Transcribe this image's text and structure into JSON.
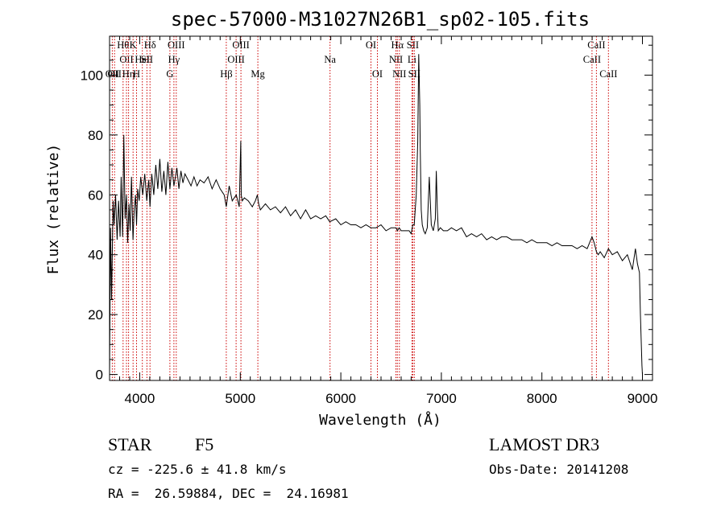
{
  "chart_data": {
    "type": "line",
    "title": "spec-57000-M31027N26B1_sp02-105.fits",
    "xlabel": "Wavelength (Å)",
    "ylabel": "Flux (relative)",
    "xlim": [
      3700,
      9100
    ],
    "ylim": [
      -2,
      113
    ],
    "x_ticks": [
      4000,
      5000,
      6000,
      7000,
      8000,
      9000
    ],
    "y_ticks": [
      0,
      20,
      40,
      60,
      80,
      100
    ],
    "grid": false,
    "line_color": "#000000",
    "marker_color": "#cc0000",
    "series": [
      {
        "x": [
          3700,
          3710,
          3720,
          3735,
          3745,
          3760,
          3775,
          3790,
          3805,
          3815,
          3830,
          3842,
          3855,
          3868,
          3880,
          3893,
          3905,
          3918,
          3933,
          3945,
          3958,
          3968,
          3980,
          3995,
          4010,
          4030,
          4050,
          4070,
          4090,
          4102,
          4120,
          4140,
          4160,
          4180,
          4200,
          4220,
          4240,
          4260,
          4280,
          4300,
          4320,
          4340,
          4355,
          4370,
          4390,
          4410,
          4430,
          4450,
          4480,
          4510,
          4540,
          4570,
          4600,
          4640,
          4680,
          4720,
          4760,
          4800,
          4840,
          4861,
          4890,
          4920,
          4960,
          4990,
          5005,
          5010,
          5020,
          5040,
          5080,
          5120,
          5150,
          5170,
          5183,
          5200,
          5250,
          5300,
          5350,
          5400,
          5450,
          5500,
          5550,
          5600,
          5650,
          5700,
          5750,
          5800,
          5850,
          5890,
          5950,
          6000,
          6050,
          6100,
          6150,
          6200,
          6250,
          6300,
          6350,
          6400,
          6450,
          6500,
          6550,
          6563,
          6580,
          6600,
          6640,
          6680,
          6700,
          6716,
          6730,
          6750,
          6765,
          6775,
          6785,
          6790,
          6800,
          6810,
          6825,
          6840,
          6860,
          6880,
          6900,
          6920,
          6940,
          6950,
          6960,
          6970,
          6990,
          7020,
          7060,
          7100,
          7150,
          7200,
          7250,
          7300,
          7350,
          7400,
          7450,
          7500,
          7550,
          7600,
          7650,
          7700,
          7750,
          7800,
          7850,
          7900,
          7950,
          8000,
          8050,
          8100,
          8150,
          8200,
          8250,
          8300,
          8350,
          8400,
          8450,
          8498,
          8520,
          8542,
          8560,
          8580,
          8620,
          8662,
          8700,
          8750,
          8800,
          8850,
          8900,
          8930,
          8950,
          8970,
          8980,
          8995,
          9000
        ],
        "y": [
          0,
          49,
          25,
          58,
          50,
          60,
          45,
          58,
          46,
          66,
          46,
          80,
          52,
          60,
          44,
          57,
          48,
          66,
          45,
          55,
          60,
          50,
          62,
          58,
          66,
          60,
          67,
          58,
          65,
          56,
          67,
          60,
          70,
          62,
          72,
          61,
          68,
          60,
          71,
          62,
          69,
          63,
          66,
          69,
          62,
          68,
          64,
          67,
          65,
          63,
          66,
          63,
          65,
          64,
          66,
          62,
          65,
          62,
          60,
          56,
          63,
          58,
          60,
          56,
          78,
          60,
          58,
          59,
          58,
          56,
          58,
          60,
          57,
          55,
          57,
          55,
          56,
          54,
          56,
          53,
          55,
          52,
          55,
          52,
          53,
          52,
          53,
          51,
          52,
          50,
          51,
          50,
          50,
          49,
          50,
          49,
          49,
          50,
          48,
          49,
          49,
          48,
          49,
          48,
          48,
          48,
          47,
          50,
          50,
          60,
          78,
          107,
          90,
          75,
          55,
          50,
          48,
          47,
          49,
          66,
          50,
          48,
          52,
          68,
          55,
          48,
          49,
          48,
          48,
          49,
          48,
          49,
          46,
          47,
          46,
          47,
          45,
          46,
          45,
          46,
          46,
          45,
          45,
          45,
          44,
          45,
          44,
          44,
          44,
          43,
          44,
          43,
          43,
          43,
          42,
          43,
          42,
          46,
          44,
          41,
          40,
          41,
          39,
          42,
          40,
          41,
          38,
          40,
          35,
          42,
          37,
          34,
          20,
          3,
          0
        ]
      }
    ],
    "line_markers": [
      {
        "x": 3727,
        "label": "OII",
        "row": 2
      },
      {
        "x": 3750,
        "label": "OII",
        "row": 2
      },
      {
        "x": 3835,
        "label": "Hθ",
        "row": 0
      },
      {
        "x": 3868,
        "label": "OII",
        "row": 1
      },
      {
        "x": 3889,
        "label": "Hη",
        "row": 2
      },
      {
        "x": 3934,
        "label": "K",
        "row": 0
      },
      {
        "x": 3968,
        "label": "H",
        "row": 2
      },
      {
        "x": 4026,
        "label": "HeI",
        "row": 1
      },
      {
        "x": 4072,
        "label": "SII",
        "row": 1
      },
      {
        "x": 4102,
        "label": "Hδ",
        "row": 0
      },
      {
        "x": 4300,
        "label": "G",
        "row": 2
      },
      {
        "x": 4340,
        "label": "Hγ",
        "row": 1
      },
      {
        "x": 4363,
        "label": "OIII",
        "row": 0
      },
      {
        "x": 4861,
        "label": "Hβ",
        "row": 2
      },
      {
        "x": 4959,
        "label": "OIII",
        "row": 1
      },
      {
        "x": 5007,
        "label": "OIII",
        "row": 0
      },
      {
        "x": 5175,
        "label": "Mg",
        "row": 2
      },
      {
        "x": 5893,
        "label": "Na",
        "row": 1
      },
      {
        "x": 6300,
        "label": "OI",
        "row": 0
      },
      {
        "x": 6364,
        "label": "OI",
        "row": 2
      },
      {
        "x": 6548,
        "label": "NII",
        "row": 1
      },
      {
        "x": 6563,
        "label": "Hα",
        "row": 0
      },
      {
        "x": 6583,
        "label": "NII",
        "row": 2
      },
      {
        "x": 6708,
        "label": "Li",
        "row": 1
      },
      {
        "x": 6716,
        "label": "SII",
        "row": 0
      },
      {
        "x": 6731,
        "label": "SII",
        "row": 2
      },
      {
        "x": 8498,
        "label": "CaII",
        "row": 1
      },
      {
        "x": 8542,
        "label": "CaII",
        "row": 0
      },
      {
        "x": 8662,
        "label": "CaII",
        "row": 2
      }
    ]
  },
  "info": {
    "object_class": "STAR",
    "subclass": "F5",
    "survey": "LAMOST DR3",
    "redshift_line": "cz = -225.6 ± 41.8 km/s",
    "obs_date_line": "Obs-Date: 20141208",
    "coords_line": "RA =  26.59884, DEC =  24.16981"
  }
}
